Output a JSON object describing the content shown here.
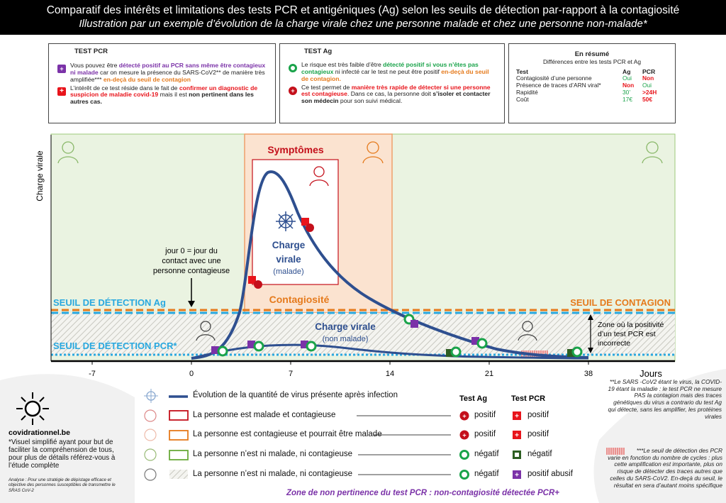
{
  "header": {
    "title": "Comparatif  des intérêts et limitations  des tests PCR et antigéniques  (Ag)  selon les seuils de détection  par-rapport  à la contagiosité",
    "subtitle": "Illustration par un exemple d’évolution de la charge virale chez une personne malade et chez une personne  non-malade*"
  },
  "box_pcr": {
    "title": "TEST PCR",
    "p1_a": "Vous pouvez être ",
    "p1_b": "détecté positif au PCR sans même être contagieux ni malade",
    "p1_c": " car on mesure la présence du SARS-CoV2** de manière très amplifiée*** ",
    "p1_d": "en-deçà du seuil de contagion",
    "p2_a": "L’intérêt de ce test réside dans le fait de ",
    "p2_b": "confirmer un diagnostic de suspicion de maladie covid-19",
    "p2_c": " mais il est ",
    "p2_d": "non pertinent dans les autres cas."
  },
  "box_ag": {
    "title": "TEST Ag",
    "p1_a": "Le risque est très faible d’être ",
    "p1_b": "détecté positif si vous n’êtes pas contagieux",
    "p1_c": " ni infecté car le test ne peut être positif ",
    "p1_d": "en-deçà du seuil de contagion.",
    "p2_a": "Ce test permet de ",
    "p2_b": "manière très rapide de détecter si une personne est contagieuse",
    "p2_c": ". Dans ce cas, la personne doit ",
    "p2_d": "s’isoler et contacter son médecin",
    "p2_e": " pour son suivi médical."
  },
  "box_summary": {
    "title": "En résumé",
    "subtitle": "Différences entre les tests PCR et Ag",
    "col_test": "Test",
    "col_ag": "Ag",
    "col_pcr": "PCR",
    "rows": [
      {
        "label": "Contagiosité d’une personne",
        "ag": "Oui",
        "pcr": "Non"
      },
      {
        "label": "Présence de traces d’ARN viral*",
        "ag": "Non",
        "pcr": "Oui"
      },
      {
        "label": "Rapidité",
        "ag": "30’",
        "pcr": ">24H"
      },
      {
        "label": "Coût",
        "ag": "17€",
        "pcr": "50€"
      }
    ]
  },
  "diagram": {
    "y_axis_label": "Charge virale",
    "x_axis_label": "Jours",
    "x_ticks": [
      "-7",
      "0",
      "7",
      "14",
      "21",
      "38"
    ],
    "symptoms_label": "Symptômes",
    "contagion_label": "Contagiosité",
    "charge_sick_1": "Charge",
    "charge_sick_2": "virale",
    "charge_sick_3": "(malade)",
    "charge_healthy_1": "Charge  virale",
    "charge_healthy_2": "(non malade)",
    "day0_1": "jour 0 = jour du",
    "day0_2": "contact avec une",
    "day0_3": "personne contagieuse",
    "threshold_ag": "SEUIL DE DÉTECTION Ag",
    "threshold_pcr": "SEUIL DE DÉTECTION PCR*",
    "threshold_contagion": "SEUIL DE CONTAGION",
    "zone_1": "Zone où la positivité",
    "zone_2": "d’un test PCR est",
    "zone_3": "incorrecte"
  },
  "brand": {
    "site": "covidrationnel.be",
    "note": "*Visuel simplifié ayant pour but de faciliter la compréhension de tous, pour plus de détails référez-vous à l’étude complète",
    "analysis": "Analyse : Pour une stratégie de dépistage efficace et objective des personnes susceptibles de transmettre  le SRAS CoV-2"
  },
  "legend": {
    "virus": "Évolution de la quantité de virus présente après infection",
    "header_ag": "Test Ag",
    "header_pcr": "Test PCR",
    "rows": [
      {
        "label": "La personne est malade et contagieuse",
        "ag": "positif",
        "pcr": "positif"
      },
      {
        "label": "La personne est contagieuse et pourrait être malade",
        "ag": "positif",
        "pcr": "positif"
      },
      {
        "label": "La personne n’est ni malade, ni contagieuse",
        "ag": "négatif",
        "pcr": "négatif"
      },
      {
        "label": "La personne n’est ni malade, ni contagieuse",
        "ag": "négatif",
        "pcr": "positif abusif"
      }
    ],
    "zone_note": "Zone de non pertinence du test PCR : non-contagiosité  détectée PCR+"
  },
  "notes": {
    "sars": "**Le SARS -CoV2 étant le virus, la COVID-19 étant la maladie  : le test PCR ne mesure  PAS la contagion mais des traces génétiques du virus a contrario du test Ag qui détecte, sans les amplifier, les protéines virales",
    "threshold": "***Le seuil de détection des PCR varie en fonction du nombre  de cycles : plus cette amplification est importante,  plus on risque de détecter des traces autres que celles du SARS-CoV2.  En-deçà du seuil, le résultat en sera d’autant moins  spécifique"
  },
  "colors": {
    "curve": "#2e4f8f",
    "threshold_line": "#29a8df",
    "contagion_line": "#e57a1c",
    "green_zone": "#eaf3e1",
    "orange_zone": "#fbe3d0"
  }
}
